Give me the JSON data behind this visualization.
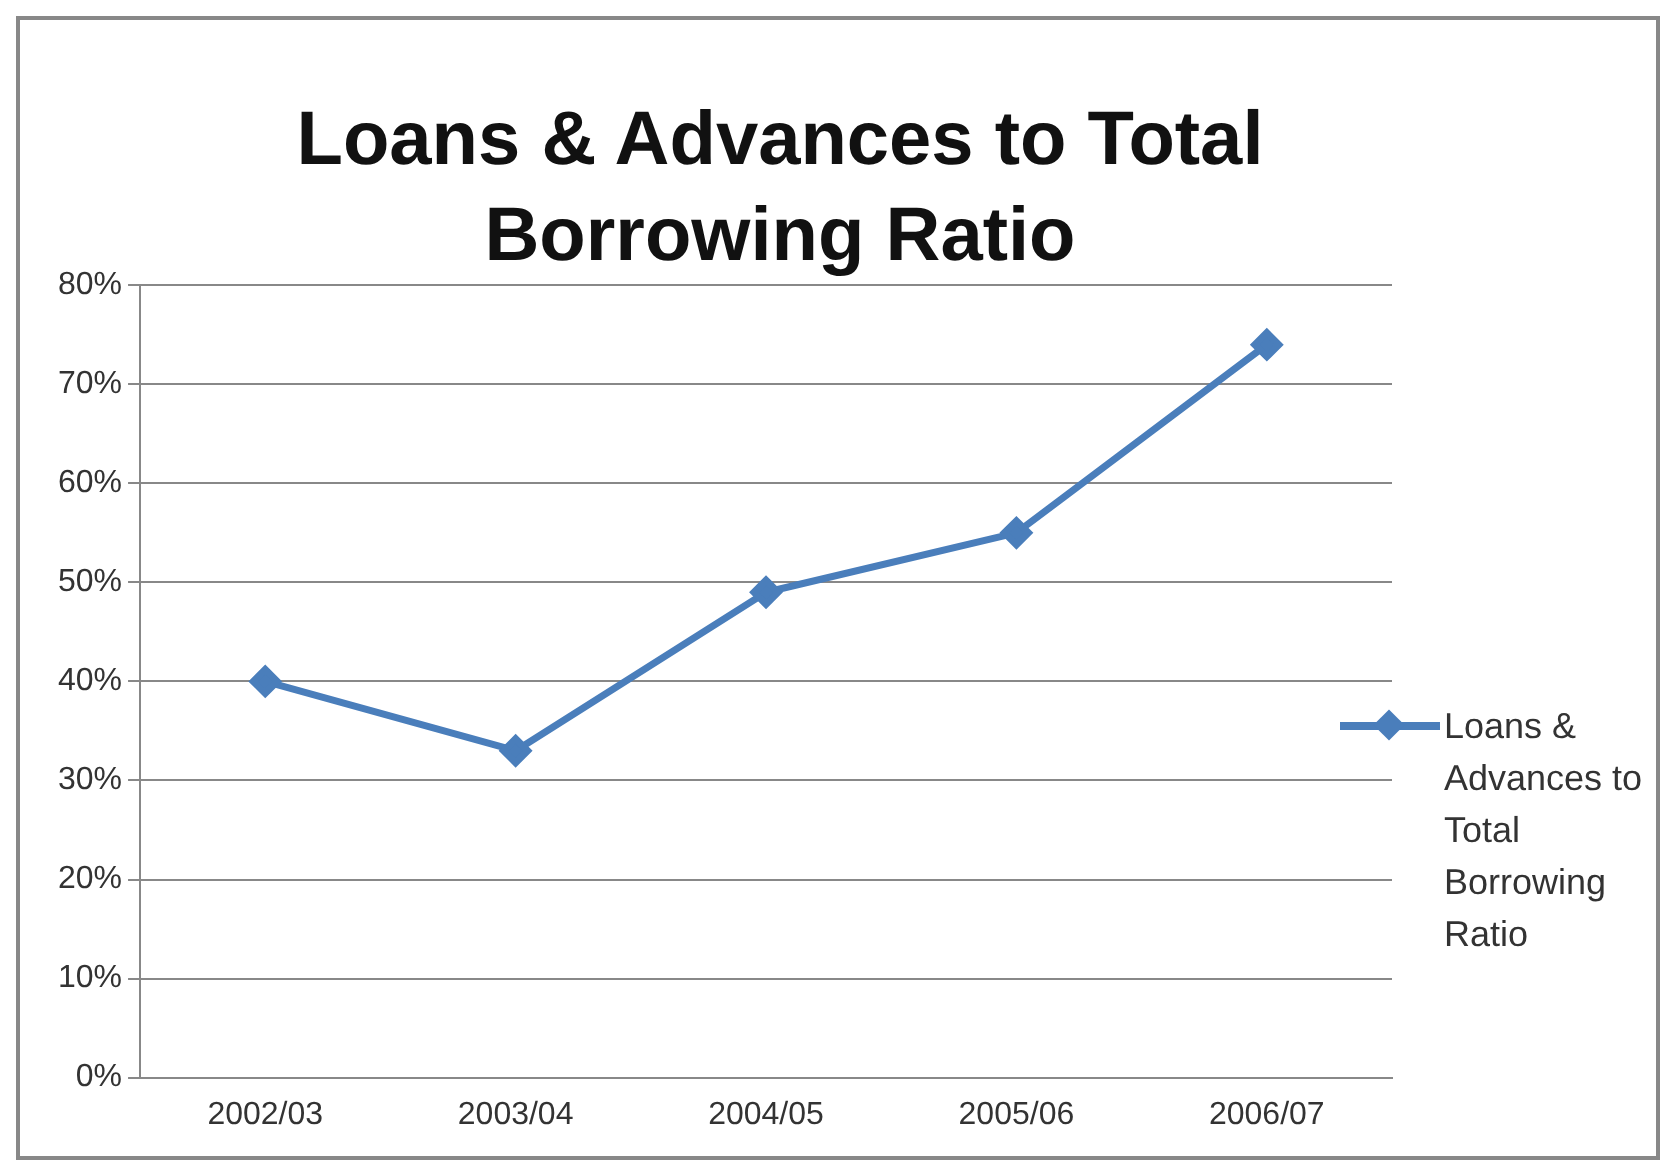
{
  "chart_data": {
    "type": "line",
    "title": "Loans & Advances to Total Borrowing Ratio",
    "categories": [
      "2002/03",
      "2003/04",
      "2004/05",
      "2005/06",
      "2006/07"
    ],
    "series": [
      {
        "name": "Loans & Advances to Total Borrowing Ratio",
        "color": "#4a7ebb",
        "values": [
          40,
          33,
          49,
          55,
          74
        ]
      }
    ],
    "ylim": [
      0,
      80
    ],
    "yticks": [
      {
        "value": 0,
        "label": "0%"
      },
      {
        "value": 10,
        "label": "10%"
      },
      {
        "value": 20,
        "label": "20%"
      },
      {
        "value": 30,
        "label": "30%"
      },
      {
        "value": 40,
        "label": "40%"
      },
      {
        "value": 50,
        "label": "50%"
      },
      {
        "value": 60,
        "label": "60%"
      },
      {
        "value": 70,
        "label": "70%"
      },
      {
        "value": 80,
        "label": "80%"
      }
    ],
    "grid": "y",
    "legend": "right",
    "marker": "diamond",
    "line_style": "solid"
  }
}
